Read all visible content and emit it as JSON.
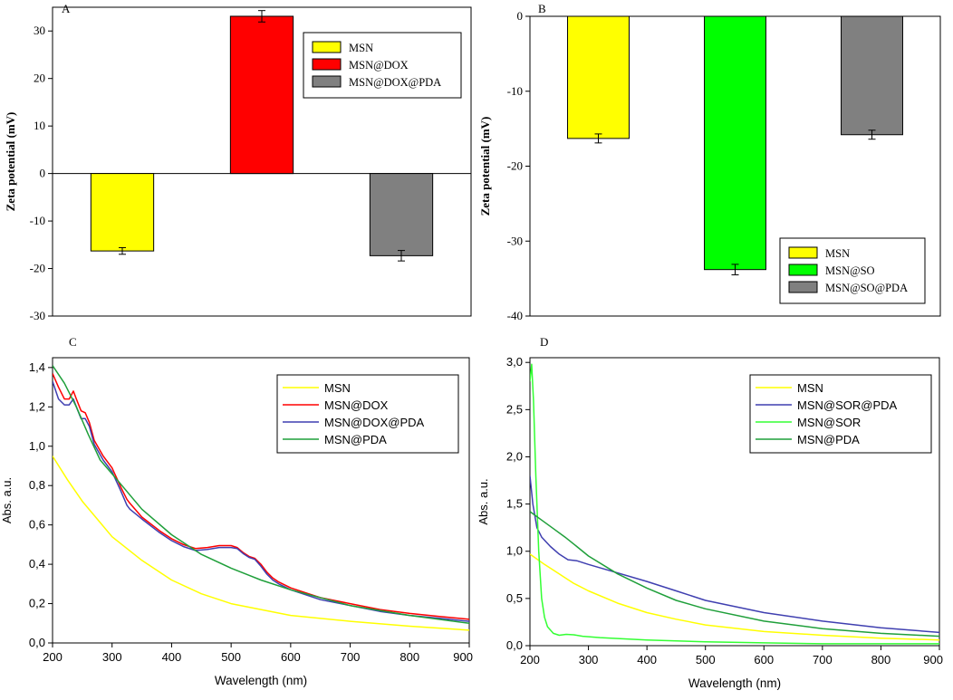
{
  "chart_data": [
    {
      "panel": "A",
      "type": "bar",
      "ylabel": "Zeta potential (mV)",
      "ylim": [
        -30,
        35
      ],
      "yticks": [
        -30,
        -20,
        -10,
        0,
        10,
        20,
        30
      ],
      "yticklabels": [
        "-30",
        "-20",
        "-10",
        "0",
        "10",
        "20",
        "30"
      ],
      "categories": [
        "MSN",
        "MSN@DOX",
        "MSN@DOX@PDA"
      ],
      "values": [
        -16.3,
        33.1,
        -17.3
      ],
      "errors": [
        0.7,
        1.2,
        1.1
      ],
      "colors": [
        "#ffff00",
        "#ff0000",
        "#808080"
      ],
      "legend_position": "top-right"
    },
    {
      "panel": "B",
      "type": "bar",
      "ylabel": "Zeta potential (mV)",
      "ylim": [
        -40,
        0
      ],
      "yticks": [
        -40,
        -30,
        -20,
        -10,
        0
      ],
      "yticklabels": [
        "-40",
        "-30",
        "-20",
        "-10",
        "0"
      ],
      "categories": [
        "MSN",
        "MSN@SO",
        "MSN@SO@PDA"
      ],
      "values": [
        -16.3,
        -33.8,
        -15.8
      ],
      "errors": [
        0.6,
        0.7,
        0.6
      ],
      "colors": [
        "#ffff00",
        "#00ff00",
        "#808080"
      ],
      "legend_position": "bottom-right"
    },
    {
      "panel": "C",
      "type": "line",
      "xlabel": "Wavelength (nm)",
      "ylabel": "Abs. a.u.",
      "xlim": [
        200,
        900
      ],
      "ylim": [
        0,
        1.45
      ],
      "xticks": [
        200,
        300,
        400,
        500,
        600,
        700,
        800,
        900
      ],
      "xticklabels": [
        "200",
        "300",
        "400",
        "500",
        "600",
        "700",
        "800",
        "900"
      ],
      "yticks": [
        0,
        0.2,
        0.4,
        0.6,
        0.8,
        1.0,
        1.2,
        1.4
      ],
      "yticklabels": [
        "0,0",
        "0,2",
        "0,4",
        "0,6",
        "0,8",
        "1,0",
        "1,2",
        "1,4"
      ],
      "legend_position": "top-right",
      "series": [
        {
          "name": "MSN",
          "color": "#ffff00",
          "x": [
            200,
            225,
            250,
            275,
            300,
            350,
            400,
            450,
            500,
            600,
            700,
            800,
            900
          ],
          "y": [
            0.95,
            0.83,
            0.72,
            0.63,
            0.54,
            0.42,
            0.32,
            0.25,
            0.2,
            0.14,
            0.11,
            0.085,
            0.065
          ]
        },
        {
          "name": "MSN@DOX",
          "color": "#ff0000",
          "x": [
            200,
            210,
            220,
            228,
            235,
            240,
            248,
            255,
            262,
            270,
            285,
            300,
            315,
            325,
            330,
            350,
            380,
            400,
            420,
            440,
            460,
            480,
            500,
            510,
            520,
            530,
            540,
            550,
            560,
            570,
            580,
            600,
            650,
            700,
            750,
            800,
            850,
            900
          ],
          "y": [
            1.37,
            1.3,
            1.24,
            1.24,
            1.28,
            1.24,
            1.18,
            1.17,
            1.12,
            1.03,
            0.95,
            0.89,
            0.79,
            0.73,
            0.71,
            0.64,
            0.57,
            0.53,
            0.5,
            0.48,
            0.485,
            0.495,
            0.495,
            0.485,
            0.46,
            0.44,
            0.43,
            0.4,
            0.36,
            0.33,
            0.31,
            0.28,
            0.23,
            0.2,
            0.17,
            0.15,
            0.135,
            0.12
          ]
        },
        {
          "name": "MSN@DOX@PDA",
          "color": "#3f3fb0",
          "x": [
            200,
            210,
            220,
            228,
            235,
            240,
            248,
            255,
            262,
            270,
            285,
            300,
            315,
            325,
            330,
            350,
            380,
            400,
            420,
            440,
            460,
            480,
            500,
            510,
            520,
            530,
            540,
            550,
            560,
            570,
            580,
            600,
            650,
            700,
            750,
            800,
            850,
            900
          ],
          "y": [
            1.33,
            1.24,
            1.21,
            1.21,
            1.24,
            1.2,
            1.14,
            1.14,
            1.1,
            1.01,
            0.93,
            0.87,
            0.77,
            0.7,
            0.68,
            0.63,
            0.56,
            0.52,
            0.49,
            0.47,
            0.475,
            0.485,
            0.485,
            0.48,
            0.455,
            0.435,
            0.425,
            0.39,
            0.35,
            0.32,
            0.3,
            0.27,
            0.22,
            0.19,
            0.16,
            0.14,
            0.125,
            0.11
          ]
        },
        {
          "name": "MSN@PDA",
          "color": "#1f9f3a",
          "x": [
            200,
            220,
            240,
            260,
            280,
            300,
            350,
            400,
            450,
            500,
            550,
            600,
            700,
            800,
            900
          ],
          "y": [
            1.41,
            1.32,
            1.2,
            1.06,
            0.93,
            0.86,
            0.68,
            0.55,
            0.45,
            0.38,
            0.32,
            0.27,
            0.19,
            0.14,
            0.1
          ]
        }
      ]
    },
    {
      "panel": "D",
      "type": "line",
      "xlabel": "Wavelength (nm)",
      "ylabel": "Abs. a.u.",
      "xlim": [
        200,
        900
      ],
      "ylim": [
        0,
        3.05
      ],
      "xticks": [
        200,
        300,
        400,
        500,
        600,
        700,
        800,
        900
      ],
      "xticklabels": [
        "200",
        "300",
        "400",
        "500",
        "600",
        "700",
        "800",
        "900"
      ],
      "yticks": [
        0,
        0.5,
        1.0,
        1.5,
        2.0,
        2.5,
        3.0
      ],
      "yticklabels": [
        "0,0",
        "0,5",
        "1,0",
        "1,5",
        "2,0",
        "2,5",
        "3,0"
      ],
      "legend_position": "top-right",
      "series": [
        {
          "name": "MSN",
          "color": "#ffff00",
          "x": [
            200,
            225,
            250,
            275,
            300,
            350,
            400,
            450,
            500,
            600,
            700,
            800,
            900
          ],
          "y": [
            0.97,
            0.86,
            0.76,
            0.66,
            0.58,
            0.45,
            0.35,
            0.28,
            0.22,
            0.15,
            0.11,
            0.08,
            0.06
          ]
        },
        {
          "name": "MSN@SOR@PDA",
          "color": "#3f3fb0",
          "x": [
            200,
            205,
            212,
            220,
            235,
            250,
            265,
            280,
            300,
            350,
            400,
            450,
            500,
            600,
            700,
            800,
            900
          ],
          "y": [
            1.8,
            1.5,
            1.25,
            1.15,
            1.05,
            0.97,
            0.91,
            0.9,
            0.86,
            0.77,
            0.68,
            0.58,
            0.48,
            0.35,
            0.26,
            0.19,
            0.14
          ]
        },
        {
          "name": "MSN@SOR",
          "color": "#33ff33",
          "x": [
            200,
            203,
            206,
            210,
            215,
            220,
            225,
            230,
            240,
            250,
            262,
            275,
            290,
            320,
            400,
            500,
            600,
            700,
            800,
            900
          ],
          "y": [
            2.8,
            2.98,
            2.6,
            1.8,
            1.0,
            0.5,
            0.3,
            0.2,
            0.13,
            0.11,
            0.12,
            0.115,
            0.1,
            0.085,
            0.06,
            0.04,
            0.03,
            0.02,
            0.02,
            0.02
          ]
        },
        {
          "name": "MSN@PDA",
          "color": "#1f9f3a",
          "x": [
            200,
            220,
            240,
            260,
            280,
            300,
            350,
            400,
            450,
            500,
            600,
            700,
            800,
            900
          ],
          "y": [
            1.42,
            1.33,
            1.24,
            1.15,
            1.05,
            0.95,
            0.76,
            0.61,
            0.48,
            0.39,
            0.26,
            0.18,
            0.13,
            0.1
          ]
        }
      ]
    }
  ]
}
